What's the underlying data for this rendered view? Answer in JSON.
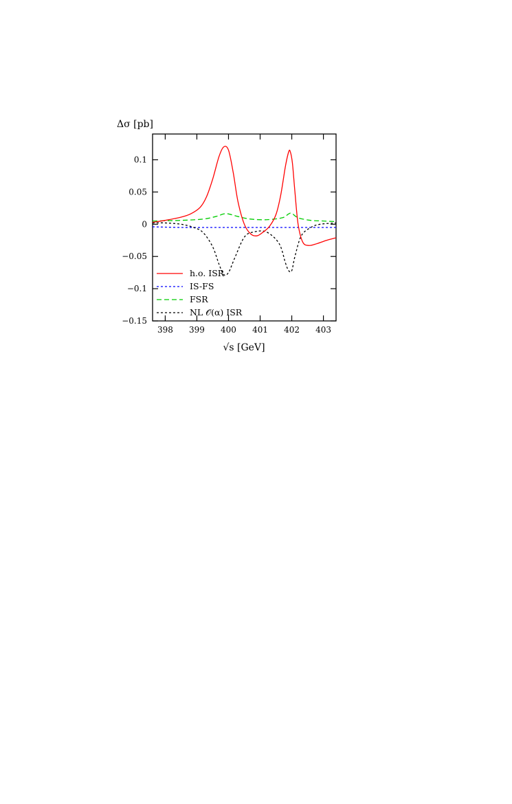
{
  "chart_data": {
    "type": "line",
    "ylabel": "Δσ [pb]",
    "xlabel": "√s [GeV]",
    "xlim": [
      397.6,
      403.4
    ],
    "ylim": [
      -0.15,
      0.14
    ],
    "xticks": [
      398,
      399,
      400,
      401,
      402,
      403
    ],
    "xtick_labels": [
      "398",
      "399",
      "400",
      "401",
      "402",
      "403"
    ],
    "yticks": [
      -0.15,
      -0.1,
      -0.05,
      0,
      0.05,
      0.1
    ],
    "ytick_labels": [
      "−0.15",
      "−0.1",
      "−0.05",
      "0",
      "0.05",
      "0.1"
    ],
    "legend_position": "bottom-left",
    "grid": false,
    "series": [
      {
        "name": "h.o. ISR",
        "color": "#ff0000",
        "dash": "solid",
        "x": [
          397.6,
          398.0,
          398.5,
          398.8,
          399.1,
          399.3,
          399.5,
          399.7,
          399.85,
          400.0,
          400.15,
          400.3,
          400.5,
          400.7,
          400.9,
          401.1,
          401.3,
          401.5,
          401.65,
          401.8,
          401.9,
          401.95,
          402.02,
          402.1,
          402.2,
          402.35,
          402.55,
          402.8,
          403.1,
          403.4
        ],
        "y": [
          0.003,
          0.006,
          0.011,
          0.016,
          0.026,
          0.042,
          0.07,
          0.105,
          0.12,
          0.115,
          0.08,
          0.035,
          0.0,
          -0.015,
          -0.018,
          -0.012,
          -0.003,
          0.015,
          0.045,
          0.09,
          0.112,
          0.113,
          0.095,
          0.05,
          0.0,
          -0.028,
          -0.033,
          -0.03,
          -0.025,
          -0.021
        ]
      },
      {
        "name": "IS-FS",
        "color": "#0000ff",
        "dash": "dotted",
        "x": [
          397.6,
          398.5,
          399.5,
          400.5,
          401.5,
          402.5,
          403.4
        ],
        "y": [
          -0.004,
          -0.005,
          -0.005,
          -0.005,
          -0.005,
          -0.005,
          -0.005
        ]
      },
      {
        "name": "FSR",
        "color": "#00cc00",
        "dash": "dashed",
        "x": [
          397.6,
          398.5,
          399.2,
          399.6,
          399.85,
          400.0,
          400.3,
          400.7,
          401.2,
          401.7,
          401.9,
          402.0,
          402.2,
          402.6,
          403.0,
          403.4
        ],
        "y": [
          0.005,
          0.006,
          0.008,
          0.012,
          0.016,
          0.016,
          0.012,
          0.008,
          0.007,
          0.01,
          0.016,
          0.017,
          0.01,
          0.006,
          0.005,
          0.004
        ]
      },
      {
        "name": "NL 𝒪(α) ISR",
        "color": "#000000",
        "dash": "dotted",
        "x": [
          397.6,
          398.0,
          398.5,
          398.9,
          399.2,
          399.5,
          399.7,
          399.85,
          400.0,
          400.2,
          400.5,
          400.8,
          401.2,
          401.6,
          401.8,
          401.9,
          402.0,
          402.1,
          402.3,
          402.6,
          402.9,
          403.4
        ],
        "y": [
          0.002,
          0.002,
          0.0,
          -0.005,
          -0.013,
          -0.035,
          -0.062,
          -0.078,
          -0.075,
          -0.052,
          -0.02,
          -0.012,
          -0.012,
          -0.03,
          -0.06,
          -0.072,
          -0.072,
          -0.05,
          -0.018,
          -0.005,
          0.0,
          0.002
        ]
      }
    ]
  }
}
